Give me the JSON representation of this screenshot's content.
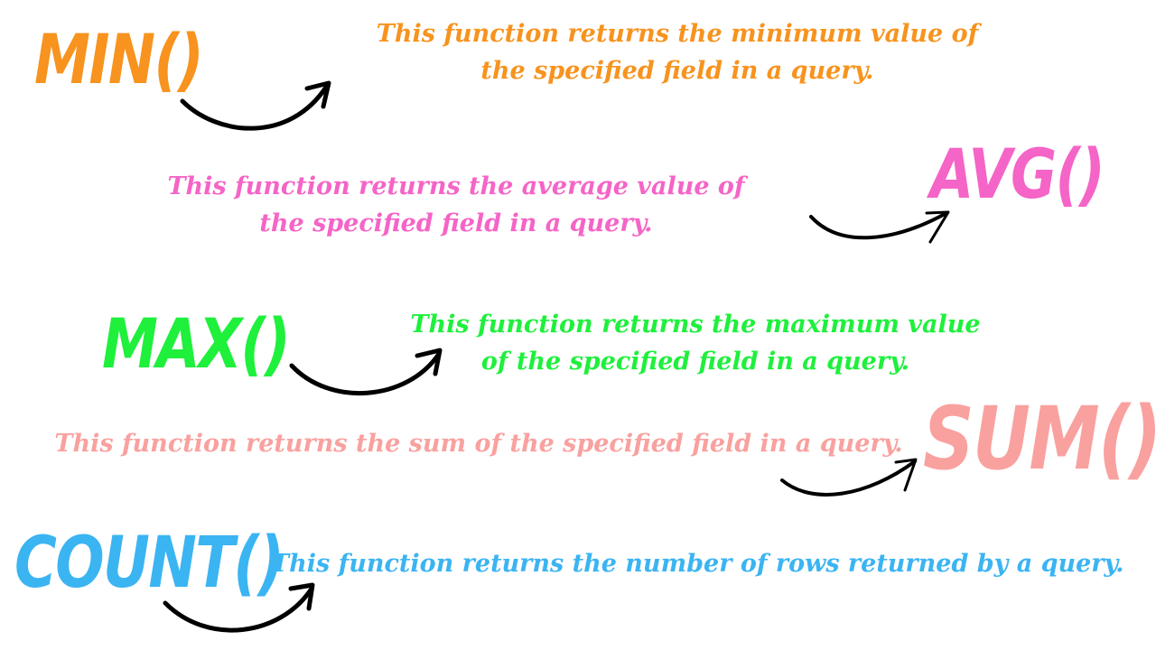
{
  "colors": {
    "min": "#f7931e",
    "avg": "#f564c7",
    "max": "#1ef03c",
    "sum": "#f9a19f",
    "count": "#3bb4f2",
    "arrow": "#000000"
  },
  "min": {
    "name": "MIN()",
    "line1": "This function returns the minimum value of",
    "line2": "the specified field in a query."
  },
  "avg": {
    "name": "AVG()",
    "line1": "This function returns the average value of",
    "line2": "the specified field in a query."
  },
  "max": {
    "name": "MAX()",
    "line1": "This function returns the maximum value",
    "line2": "of the specified field in a query."
  },
  "sum": {
    "name": "SUM()",
    "line1": "This function returns the sum of the specified field in a query."
  },
  "count": {
    "name": "COUNT()",
    "line1": "This function returns the number of rows returned by a query."
  }
}
